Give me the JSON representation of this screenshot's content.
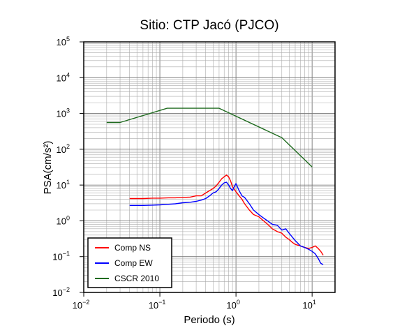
{
  "chart_data": {
    "type": "line",
    "title": "Sitio: CTP Jacó (PJCO)",
    "xlabel": "Periodo (s)",
    "ylabel": "PSA(cm/s²)",
    "xscale": "log",
    "yscale": "log",
    "xlim": [
      0.01,
      20
    ],
    "ylim": [
      0.01,
      100000
    ],
    "grid": true,
    "legend_position": "bottom-left",
    "x_ticks": [
      {
        "base": "10",
        "exp": "−2"
      },
      {
        "base": "10",
        "exp": "−1"
      },
      {
        "base": "10",
        "exp": "0"
      },
      {
        "base": "10",
        "exp": "1"
      }
    ],
    "y_ticks": [
      {
        "base": "10",
        "exp": "−2"
      },
      {
        "base": "10",
        "exp": "−1"
      },
      {
        "base": "10",
        "exp": "0"
      },
      {
        "base": "10",
        "exp": "1"
      },
      {
        "base": "10",
        "exp": "2"
      },
      {
        "base": "10",
        "exp": "3"
      },
      {
        "base": "10",
        "exp": "4"
      },
      {
        "base": "10",
        "exp": "5"
      }
    ],
    "series": [
      {
        "name": "Comp NS",
        "color": "#ff0000",
        "x": [
          0.04,
          0.06,
          0.08,
          0.1,
          0.13,
          0.16,
          0.2,
          0.25,
          0.3,
          0.35,
          0.4,
          0.45,
          0.5,
          0.55,
          0.6,
          0.65,
          0.7,
          0.75,
          0.8,
          0.85,
          0.9,
          1.0,
          1.1,
          1.2,
          1.3,
          1.5,
          1.7,
          2.0,
          2.3,
          2.6,
          3.0,
          3.5,
          4.0,
          4.5,
          5.0,
          5.5,
          6.0,
          7.0,
          8.0,
          9.0,
          10.0,
          11.0,
          12.0,
          13.0,
          14.0
        ],
        "y": [
          4.2,
          4.2,
          4.3,
          4.3,
          4.4,
          4.4,
          4.5,
          4.6,
          5.0,
          5.0,
          6.0,
          7.0,
          8.0,
          9.5,
          12.0,
          15.0,
          17.0,
          19.0,
          17.0,
          13.0,
          9.0,
          6.5,
          5.0,
          4.0,
          3.0,
          2.0,
          1.5,
          1.3,
          1.0,
          0.8,
          0.6,
          0.5,
          0.45,
          0.35,
          0.3,
          0.25,
          0.22,
          0.2,
          0.18,
          0.17,
          0.18,
          0.2,
          0.17,
          0.14,
          0.11
        ]
      },
      {
        "name": "Comp EW",
        "color": "#0000ff",
        "x": [
          0.04,
          0.06,
          0.08,
          0.1,
          0.13,
          0.16,
          0.2,
          0.25,
          0.3,
          0.35,
          0.4,
          0.45,
          0.5,
          0.55,
          0.6,
          0.65,
          0.7,
          0.75,
          0.8,
          0.85,
          0.9,
          0.95,
          1.0,
          1.1,
          1.2,
          1.3,
          1.5,
          1.7,
          2.0,
          2.3,
          2.6,
          3.0,
          3.5,
          4.0,
          4.5,
          5.0,
          5.5,
          6.0,
          7.0,
          8.0,
          9.0,
          10.0,
          11.0,
          12.0,
          13.0,
          14.0
        ],
        "y": [
          2.7,
          2.7,
          2.75,
          2.8,
          2.9,
          3.0,
          3.2,
          3.3,
          3.5,
          3.8,
          4.2,
          5.0,
          6.0,
          6.5,
          8.0,
          10.0,
          11.5,
          12.0,
          10.0,
          8.0,
          7.0,
          9.0,
          11.0,
          7.0,
          5.0,
          4.5,
          3.0,
          2.0,
          1.5,
          1.2,
          1.0,
          0.8,
          0.75,
          0.55,
          0.6,
          0.45,
          0.35,
          0.28,
          0.2,
          0.18,
          0.16,
          0.14,
          0.12,
          0.09,
          0.065,
          0.06
        ]
      },
      {
        "name": "CSCR 2010",
        "color": "#1f6b1f",
        "x": [
          0.02,
          0.03,
          0.125,
          0.6,
          4.0,
          10.0
        ],
        "y": [
          560,
          560,
          1400,
          1400,
          210,
          32
        ]
      }
    ]
  }
}
